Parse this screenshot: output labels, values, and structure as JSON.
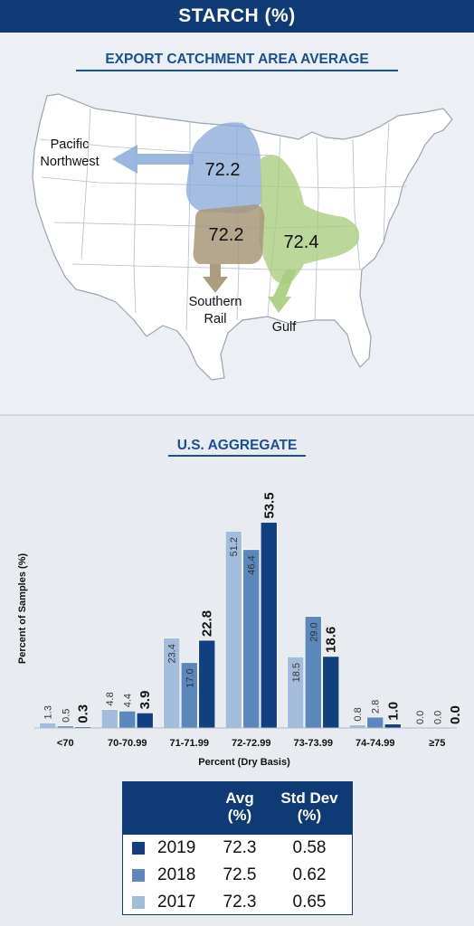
{
  "title": "STARCH (%)",
  "map_section": {
    "heading": "EXPORT CATCHMENT AREA AVERAGE",
    "regions": [
      {
        "name": "Pacific Northwest",
        "label_lines": [
          "Pacific",
          "Northwest"
        ],
        "value": "72.2",
        "color": "#8aaad8"
      },
      {
        "name": "Southern Rail",
        "label_lines": [
          "Southern",
          "Rail"
        ],
        "value": "72.2",
        "color": "#a8987a"
      },
      {
        "name": "Gulf",
        "label_lines": [
          "Gulf"
        ],
        "value": "72.4",
        "color": "#a9cc7e"
      }
    ]
  },
  "chart_section": {
    "heading": "U.S. AGGREGATE"
  },
  "chart_data": {
    "type": "bar",
    "xlabel": "Percent (Dry Basis)",
    "ylabel": "Percent of Samples (%)",
    "categories": [
      "<70",
      "70-70.99",
      "71-71.99",
      "72-72.99",
      "73-73.99",
      "74-74.99",
      "≥75"
    ],
    "series": [
      {
        "name": "2017",
        "color": "#a3bcdc",
        "values": [
          1.3,
          4.8,
          23.4,
          51.2,
          18.5,
          0.8,
          0.0
        ]
      },
      {
        "name": "2018",
        "color": "#5b87bd",
        "values": [
          0.5,
          4.4,
          17.0,
          46.4,
          29.0,
          2.8,
          0.0
        ]
      },
      {
        "name": "2019",
        "color": "#123f7f",
        "values": [
          0.3,
          3.9,
          22.8,
          53.5,
          18.6,
          1.0,
          0.0
        ]
      }
    ],
    "ylim": [
      0,
      60
    ],
    "grid": false
  },
  "stats_table": {
    "headers": {
      "avg": [
        "Avg",
        "(%)"
      ],
      "sd": [
        "Std Dev",
        "(%)"
      ]
    },
    "rows": [
      {
        "year": "2019",
        "avg": "72.3",
        "sd": "0.58",
        "color": "#123f7f"
      },
      {
        "year": "2018",
        "avg": "72.5",
        "sd": "0.62",
        "color": "#5b87bd"
      },
      {
        "year": "2017",
        "avg": "72.3",
        "sd": "0.65",
        "color": "#a3bcdc"
      }
    ]
  }
}
